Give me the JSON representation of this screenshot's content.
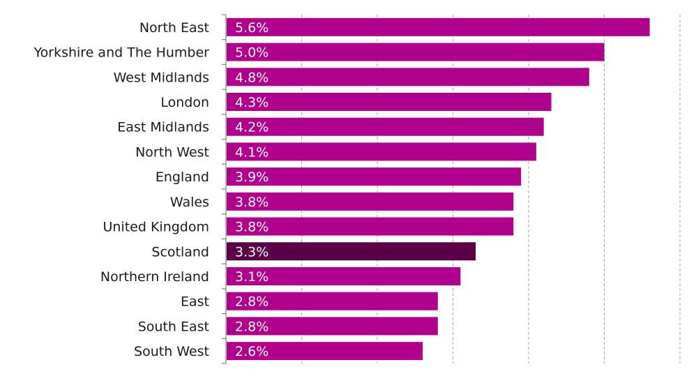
{
  "chart_data": {
    "type": "bar",
    "orientation": "horizontal",
    "categories": [
      "North East",
      "Yorkshire and The Humber",
      "West Midlands",
      "London",
      "East Midlands",
      "North West",
      "England",
      "Wales",
      "United Kingdom",
      "Scotland",
      "Northern Ireland",
      "East",
      "South East",
      "South West"
    ],
    "values": [
      5.6,
      5.0,
      4.8,
      4.3,
      4.2,
      4.1,
      3.9,
      3.8,
      3.8,
      3.3,
      3.1,
      2.8,
      2.8,
      2.6
    ],
    "value_labels": [
      "5.6%",
      "5.0%",
      "4.8%",
      "4.3%",
      "4.2%",
      "4.1%",
      "3.9%",
      "3.8%",
      "3.8%",
      "3.3%",
      "3.1%",
      "2.8%",
      "2.8%",
      "2.6%"
    ],
    "title": "",
    "xlabel": "",
    "ylabel": "",
    "xlim": [
      0,
      6
    ],
    "grid": true,
    "grid_style": "dashed-vertical",
    "legend": false,
    "colors": {
      "bar": "#b0008c",
      "highlight": "#5c0047",
      "label": "#1a1a1a",
      "value_label": "#ffffff",
      "grid": "#a6a6a6",
      "axis": "#7f7f7f"
    },
    "highlight_category": "Scotland"
  }
}
